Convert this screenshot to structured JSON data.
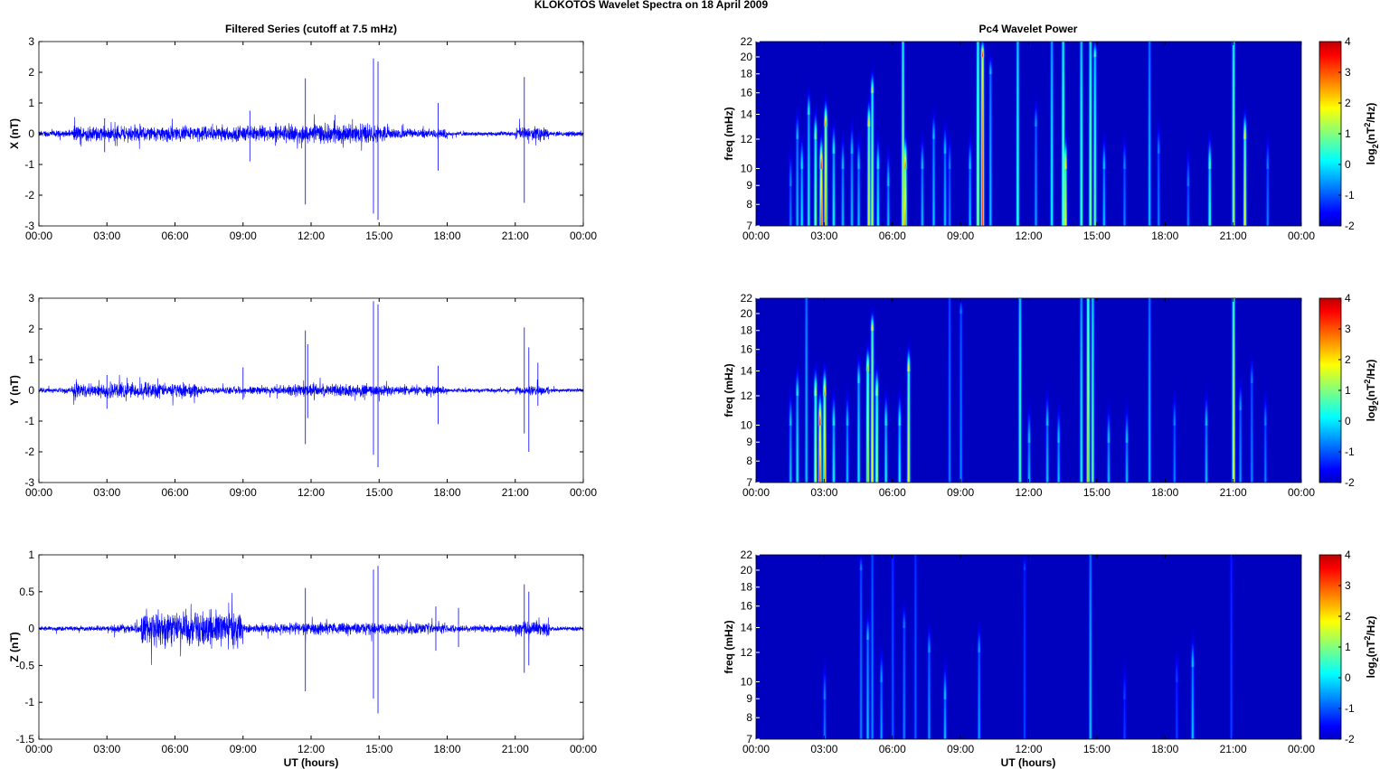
{
  "title": "KLOKOTOS Wavelet Spectra on 18 April     2009",
  "left_title": "Filtered Series (cutoff at 7.5 mHz)",
  "right_title": "Pc4 Wavelet Power",
  "xlabel": "UT (hours)",
  "time_ticks": [
    "00:00",
    "03:00",
    "06:00",
    "09:00",
    "12:00",
    "15:00",
    "18:00",
    "21:00",
    "00:00"
  ],
  "freq_label": "freq (mHz)",
  "freq_ticks": [
    7,
    8,
    9,
    10,
    12,
    14,
    16,
    18,
    20,
    22
  ],
  "colorbar": {
    "ticks": [
      4,
      3,
      2,
      1,
      0,
      -1,
      -2
    ],
    "range": [
      -2,
      4
    ],
    "colormap": "jet",
    "label": {
      "pre": "log",
      "sub": "2",
      "mid": "(nT",
      "sup": "2",
      "post": "/Hz)"
    }
  },
  "line_color": "#0000ff",
  "chart_data": [
    {
      "type": "line",
      "component": "X",
      "ylabel": "X (nT)",
      "xlim": [
        0,
        24
      ],
      "ylim": [
        -3,
        3
      ],
      "yticks": [
        "3",
        "2",
        "1",
        "0",
        "-1",
        "-2",
        "-3"
      ],
      "noise_envelope": [
        [
          0,
          1.5,
          0.1
        ],
        [
          1.5,
          11,
          0.25
        ],
        [
          11,
          15.5,
          0.3
        ],
        [
          15.5,
          18,
          0.15
        ],
        [
          18,
          21,
          0.07
        ],
        [
          21,
          22.5,
          0.2
        ],
        [
          22.5,
          24,
          0.08
        ]
      ],
      "spikes": [
        [
          2.9,
          0.5,
          -0.6
        ],
        [
          9.3,
          0.75,
          -0.9
        ],
        [
          11.75,
          1.8,
          -2.3
        ],
        [
          14.75,
          2.45,
          -2.6
        ],
        [
          14.95,
          2.35,
          -2.8
        ],
        [
          17.6,
          1.0,
          -1.2
        ],
        [
          21.4,
          1.85,
          -2.25
        ]
      ]
    },
    {
      "type": "line",
      "component": "Y",
      "ylabel": "Y (nT)",
      "xlim": [
        0,
        24
      ],
      "ylim": [
        -3,
        3
      ],
      "yticks": [
        "3",
        "2",
        "1",
        "0",
        "-1",
        "-2",
        "-3"
      ],
      "noise_envelope": [
        [
          0,
          1.5,
          0.08
        ],
        [
          1.5,
          7,
          0.25
        ],
        [
          7,
          11,
          0.12
        ],
        [
          11,
          15.5,
          0.2
        ],
        [
          15.5,
          18,
          0.15
        ],
        [
          18,
          21,
          0.06
        ],
        [
          21,
          22.5,
          0.15
        ],
        [
          22.5,
          24,
          0.06
        ]
      ],
      "spikes": [
        [
          3.0,
          0.5,
          -0.6
        ],
        [
          9.0,
          0.75,
          -0.3
        ],
        [
          11.75,
          1.95,
          -1.75
        ],
        [
          11.85,
          1.5,
          -0.9
        ],
        [
          14.75,
          2.9,
          -2.1
        ],
        [
          14.95,
          2.8,
          -2.5
        ],
        [
          17.6,
          0.8,
          -1.1
        ],
        [
          21.4,
          2.05,
          -1.4
        ],
        [
          21.6,
          1.4,
          -2.0
        ],
        [
          22.0,
          0.9,
          -0.5
        ]
      ]
    },
    {
      "type": "line",
      "component": "Z",
      "ylabel": "Z (nT)",
      "xlim": [
        0,
        24
      ],
      "ylim": [
        -1.5,
        1
      ],
      "yticks": [
        "1",
        "0.5",
        "0",
        "-0.5",
        "-1",
        "-1.5"
      ],
      "noise_envelope": [
        [
          0,
          3,
          0.03
        ],
        [
          3,
          4.5,
          0.06
        ],
        [
          4.5,
          9,
          0.25
        ],
        [
          9,
          11,
          0.06
        ],
        [
          11,
          15.5,
          0.08
        ],
        [
          15.5,
          18,
          0.07
        ],
        [
          18,
          21,
          0.05
        ],
        [
          21,
          22.5,
          0.1
        ],
        [
          22.5,
          24,
          0.03
        ]
      ],
      "spikes": [
        [
          11.75,
          0.55,
          -0.85
        ],
        [
          14.75,
          0.8,
          -0.95
        ],
        [
          14.95,
          0.85,
          -1.15
        ],
        [
          17.5,
          0.3,
          -0.3
        ],
        [
          18.5,
          0.28,
          -0.25
        ],
        [
          21.4,
          0.6,
          -0.6
        ],
        [
          21.6,
          0.5,
          -0.5
        ]
      ]
    },
    {
      "type": "heatmap",
      "component": "X",
      "xlim": [
        0,
        24
      ],
      "ylim": [
        7,
        22
      ],
      "yscale": "log",
      "clim": [
        -2,
        4
      ],
      "bursts_t_fmax_peak": [
        [
          1.5,
          9,
          -0.5
        ],
        [
          1.8,
          12,
          0
        ],
        [
          2.0,
          10,
          0.3
        ],
        [
          2.3,
          14,
          0.5
        ],
        [
          2.6,
          12,
          1.5
        ],
        [
          2.85,
          10,
          3.5
        ],
        [
          3.05,
          13,
          3
        ],
        [
          3.4,
          11,
          0.5
        ],
        [
          3.8,
          10,
          0
        ],
        [
          4.2,
          11,
          0
        ],
        [
          4.5,
          10,
          0
        ],
        [
          4.95,
          13,
          2
        ],
        [
          5.1,
          16,
          1.5
        ],
        [
          5.35,
          10,
          0.5
        ],
        [
          5.8,
          9,
          0
        ],
        [
          6.45,
          22,
          1.5
        ],
        [
          6.55,
          10,
          3
        ],
        [
          7.3,
          10,
          0
        ],
        [
          7.8,
          12,
          0
        ],
        [
          8.3,
          11,
          0
        ],
        [
          8.5,
          10,
          -0.5
        ],
        [
          9.4,
          10,
          0
        ],
        [
          9.75,
          22,
          2
        ],
        [
          9.95,
          20,
          3.5
        ],
        [
          10.3,
          18,
          0
        ],
        [
          11.5,
          22,
          1
        ],
        [
          12.3,
          13,
          -0.3
        ],
        [
          13.0,
          22,
          0.5
        ],
        [
          13.5,
          22,
          1.5
        ],
        [
          13.6,
          10,
          2
        ],
        [
          14.3,
          22,
          1
        ],
        [
          14.7,
          22,
          1.5
        ],
        [
          14.9,
          20,
          1
        ],
        [
          15.3,
          10,
          0
        ],
        [
          16.2,
          10,
          -0.5
        ],
        [
          17.3,
          22,
          0
        ],
        [
          17.7,
          11,
          -0.5
        ],
        [
          19.0,
          9,
          -0.5
        ],
        [
          19.95,
          10,
          1
        ],
        [
          21.0,
          22,
          1.5
        ],
        [
          21.5,
          12,
          2
        ],
        [
          22.5,
          10,
          -0.5
        ]
      ]
    },
    {
      "type": "heatmap",
      "component": "Y",
      "xlim": [
        0,
        24
      ],
      "ylim": [
        7,
        22
      ],
      "yscale": "log",
      "clim": [
        -2,
        4
      ],
      "bursts_t_fmax_peak": [
        [
          1.5,
          10,
          0
        ],
        [
          1.8,
          12,
          0.5
        ],
        [
          2.2,
          22,
          0
        ],
        [
          2.6,
          12,
          2
        ],
        [
          2.8,
          10,
          3.5
        ],
        [
          3.0,
          12,
          3
        ],
        [
          3.4,
          10,
          0.5
        ],
        [
          4.0,
          10,
          0
        ],
        [
          4.5,
          13,
          0.5
        ],
        [
          4.9,
          14,
          2.5
        ],
        [
          5.1,
          18,
          2
        ],
        [
          5.3,
          12,
          2
        ],
        [
          5.7,
          10,
          0.5
        ],
        [
          6.3,
          10,
          0.5
        ],
        [
          6.7,
          14,
          2
        ],
        [
          8.5,
          22,
          -0.5
        ],
        [
          9.0,
          20,
          -0.5
        ],
        [
          11.6,
          22,
          1
        ],
        [
          12.0,
          9,
          0
        ],
        [
          12.8,
          10,
          0
        ],
        [
          13.3,
          9,
          0
        ],
        [
          14.3,
          22,
          0.5
        ],
        [
          14.6,
          22,
          2.5
        ],
        [
          14.8,
          22,
          1
        ],
        [
          15.5,
          9,
          0
        ],
        [
          16.3,
          9,
          0
        ],
        [
          17.3,
          22,
          0
        ],
        [
          18.4,
          10,
          -0.5
        ],
        [
          19.8,
          10,
          0
        ],
        [
          21.0,
          22,
          2
        ],
        [
          21.3,
          11,
          -0.3
        ],
        [
          21.8,
          13,
          -0.5
        ],
        [
          22.4,
          10,
          -0.5
        ]
      ]
    },
    {
      "type": "heatmap",
      "component": "Z",
      "xlim": [
        0,
        24
      ],
      "ylim": [
        7,
        22
      ],
      "yscale": "log",
      "clim": [
        -2,
        4
      ],
      "bursts_t_fmax_peak": [
        [
          3.0,
          9,
          -0.5
        ],
        [
          4.6,
          20,
          -0.5
        ],
        [
          4.9,
          13,
          0
        ],
        [
          5.1,
          22,
          -0.5
        ],
        [
          5.5,
          10,
          -0.3
        ],
        [
          6.0,
          22,
          -0.8
        ],
        [
          6.5,
          14,
          -0.5
        ],
        [
          7.0,
          22,
          -0.8
        ],
        [
          7.6,
          12,
          -0.3
        ],
        [
          8.3,
          9,
          0
        ],
        [
          9.8,
          12,
          -0.3
        ],
        [
          11.8,
          20,
          -1
        ],
        [
          14.7,
          22,
          0
        ],
        [
          16.2,
          9,
          -1
        ],
        [
          18.5,
          10,
          -1
        ],
        [
          19.2,
          11,
          0
        ],
        [
          20.9,
          22,
          -1
        ]
      ]
    }
  ]
}
